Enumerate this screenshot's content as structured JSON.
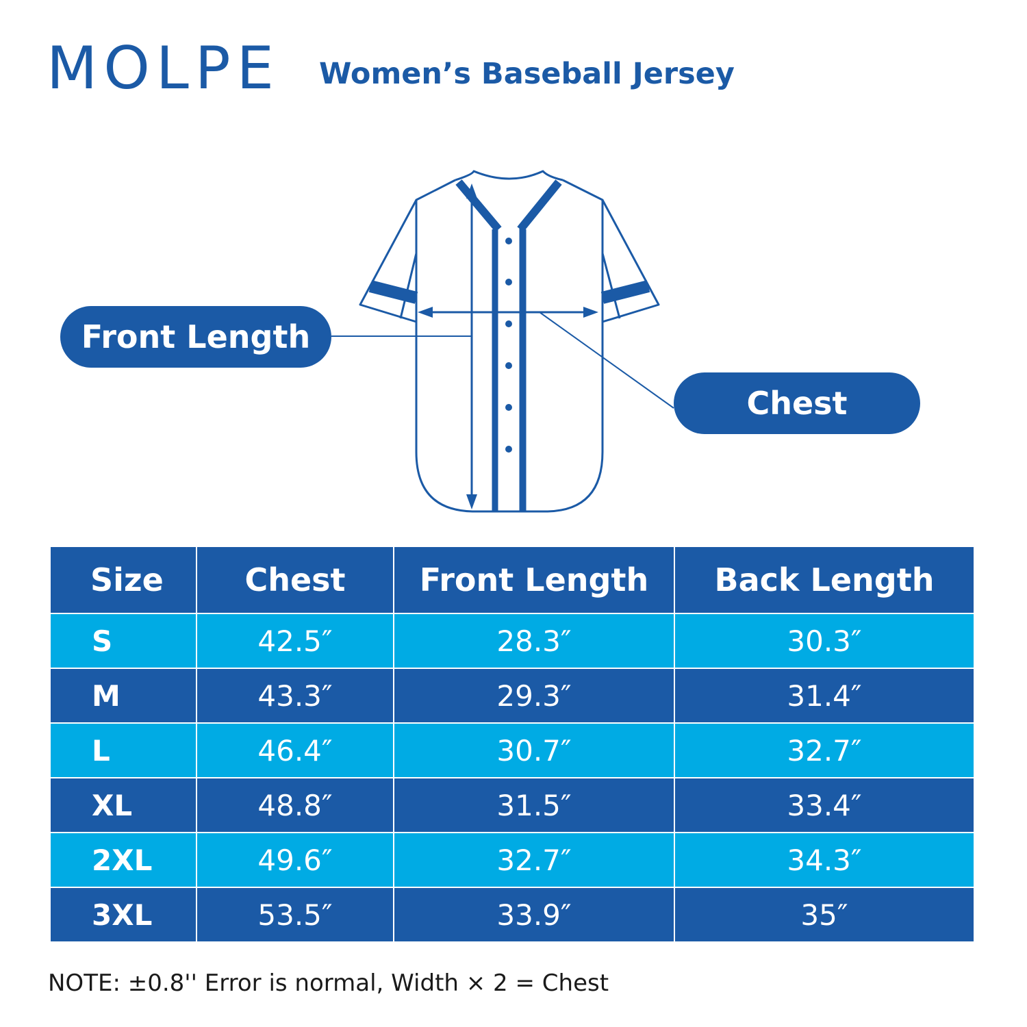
{
  "brand": "MOLPE",
  "product_title": "Women’s Baseball Jersey",
  "diagram": {
    "front_length_label": "Front Length",
    "chest_label": "Chest"
  },
  "table": {
    "headers": [
      "Size",
      "Chest",
      "Front Length",
      "Back Length"
    ],
    "rows": [
      [
        "S",
        "42.5″",
        "28.3″",
        "30.3″"
      ],
      [
        "M",
        "43.3″",
        "29.3″",
        "31.4″"
      ],
      [
        "L",
        "46.4″",
        "30.7″",
        "32.7″"
      ],
      [
        "XL",
        "48.8″",
        "31.5″",
        "33.4″"
      ],
      [
        "2XL",
        "49.6″",
        "32.7″",
        "34.3″"
      ],
      [
        "3XL",
        "53.5″",
        "33.9″",
        "35″"
      ]
    ]
  },
  "note": "NOTE: ±0.8'' Error is normal, Width × 2 = Chest",
  "colors": {
    "brand_blue": "#1b5aa6",
    "header_blue": "#1b5aa6",
    "row_light": "#00abe4",
    "row_dark": "#1b5aa6",
    "note_text": "#1a1a1a"
  },
  "icons": {
    "jersey": "jersey-outline-icon",
    "front_arrow": "vertical-double-arrow-icon",
    "chest_arrow": "horizontal-double-arrow-icon"
  }
}
